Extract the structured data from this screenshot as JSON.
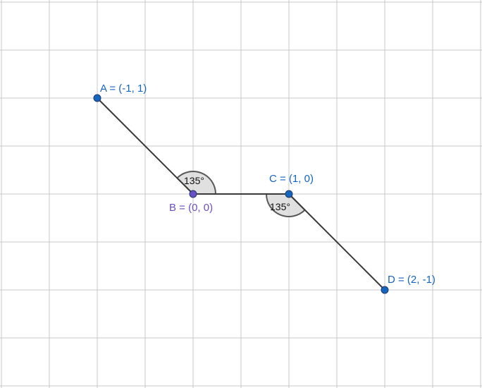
{
  "colors": {
    "background": "#ffffff",
    "grid": "#c9c9c9",
    "segment": "#3a3a3a",
    "point_blue": "#1565c0",
    "point_purple": "#6a4fc7",
    "label_blue": "#1565c0",
    "label_purple": "#6a4fc7",
    "angle_fill": "#d6d6d6",
    "angle_stroke": "#595959"
  },
  "points": {
    "A": {
      "label": "A = (-1, 1)",
      "x": -1,
      "y": 1,
      "color": "#1565c0"
    },
    "B": {
      "label": "B = (0, 0)",
      "x": 0,
      "y": 0,
      "color": "#6a4fc7"
    },
    "C": {
      "label": "C = (1, 0)",
      "x": 1,
      "y": 0,
      "color": "#1565c0"
    },
    "D": {
      "label": "D = (2, -1)",
      "x": 2,
      "y": -1,
      "color": "#1565c0"
    }
  },
  "segments": [
    {
      "name": "segment-ab",
      "from": "A",
      "to": "B"
    },
    {
      "name": "segment-bc",
      "from": "B",
      "to": "C"
    },
    {
      "name": "segment-cd",
      "from": "C",
      "to": "D"
    }
  ],
  "angles": {
    "B": {
      "label": "135°",
      "vertex": "B",
      "arms": [
        "A",
        "C"
      ]
    },
    "C": {
      "label": "135°",
      "vertex": "C",
      "arms": [
        "B",
        "D"
      ]
    }
  }
}
